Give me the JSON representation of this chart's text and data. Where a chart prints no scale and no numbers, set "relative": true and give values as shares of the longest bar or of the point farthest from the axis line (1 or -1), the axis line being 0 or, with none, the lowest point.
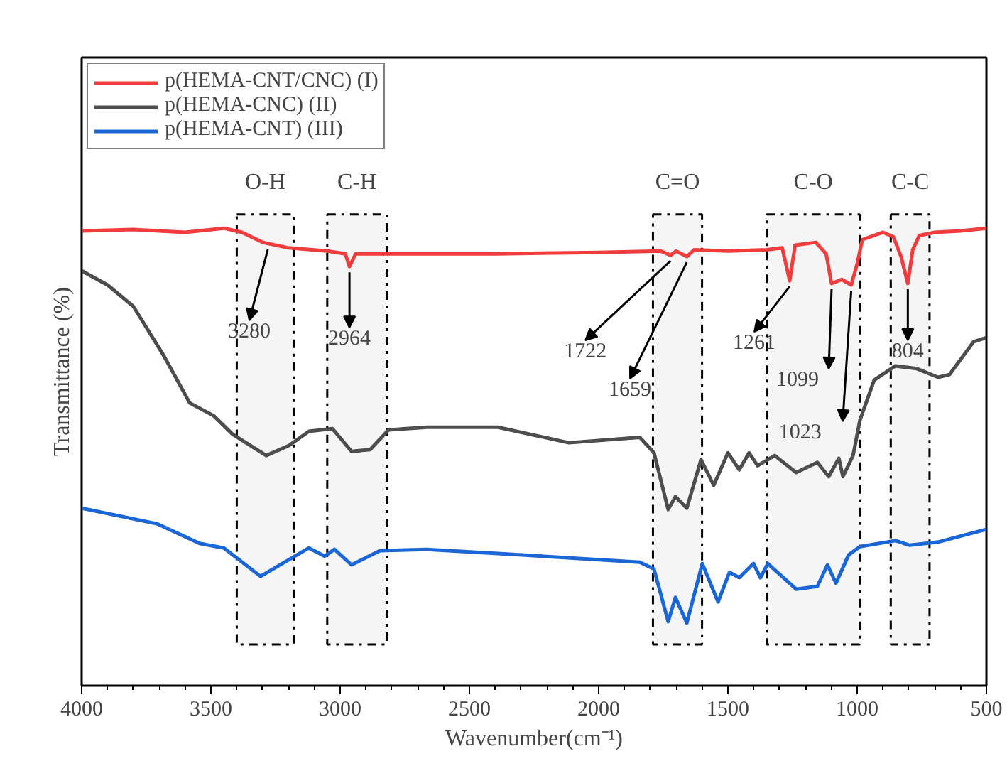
{
  "chart_data": {
    "type": "line",
    "relative": true,
    "xlabel": "Wavenumber(cm⁻¹)",
    "ylabel": "Transmittance (%)",
    "xlim": [
      4000,
      500
    ],
    "xticks": [
      4000,
      3500,
      3000,
      2500,
      2000,
      1500,
      1000,
      500
    ],
    "grid": false,
    "legend": "top left",
    "line_style": "solid",
    "marker": "none",
    "tick_labels": "x",
    "series": [
      {
        "name": "p(HEMA-CNT/CNC) (I)",
        "color": "#f03c3c",
        "x": [
          4000,
          3800,
          3600,
          3450,
          3380,
          3300,
          3200,
          3050,
          2980,
          2964,
          2940,
          2700,
          2400,
          2000,
          1760,
          1722,
          1700,
          1659,
          1630,
          1500,
          1350,
          1290,
          1261,
          1240,
          1160,
          1120,
          1099,
          1060,
          1023,
          1000,
          980,
          900,
          860,
          830,
          804,
          785,
          760,
          700,
          600,
          500
        ],
        "values": [
          0.994,
          0.997,
          0.991,
          1.0,
          0.991,
          0.969,
          0.957,
          0.95,
          0.944,
          0.916,
          0.944,
          0.944,
          0.944,
          0.947,
          0.95,
          0.941,
          0.95,
          0.938,
          0.953,
          0.95,
          0.953,
          0.957,
          0.885,
          0.963,
          0.969,
          0.944,
          0.879,
          0.888,
          0.876,
          0.922,
          0.975,
          0.991,
          0.981,
          0.938,
          0.879,
          0.953,
          0.984,
          0.991,
          0.994,
          1.0
        ]
      },
      {
        "name": "p(HEMA-CNC) (II)",
        "color": "#4d4d4d",
        "x": [
          4000,
          3900,
          3800,
          3681,
          3582,
          3489,
          3417,
          3286,
          3198,
          3121,
          3030,
          2956,
          2884,
          2813,
          2664,
          2390,
          2115,
          1841,
          1786,
          1731,
          1703,
          1659,
          1604,
          1555,
          1500,
          1456,
          1418,
          1385,
          1319,
          1236,
          1154,
          1110,
          1071,
          1055,
          1016,
          989,
          934,
          852,
          769,
          687,
          643,
          549,
          500
        ],
        "values": [
          0.907,
          0.876,
          0.829,
          0.72,
          0.618,
          0.59,
          0.55,
          0.503,
          0.525,
          0.556,
          0.562,
          0.512,
          0.516,
          0.559,
          0.565,
          0.565,
          0.531,
          0.543,
          0.509,
          0.385,
          0.413,
          0.388,
          0.494,
          0.438,
          0.509,
          0.472,
          0.509,
          0.481,
          0.503,
          0.466,
          0.488,
          0.457,
          0.497,
          0.457,
          0.503,
          0.581,
          0.668,
          0.699,
          0.693,
          0.674,
          0.68,
          0.752,
          0.761
        ]
      },
      {
        "name": "p(HEMA-CNT) (III)",
        "color": "#1a66d6",
        "x": [
          4000,
          3709,
          3544,
          3450,
          3308,
          3121,
          3060,
          3022,
          2956,
          2846,
          2665,
          2390,
          1841,
          1786,
          1731,
          1703,
          1659,
          1599,
          1538,
          1494,
          1456,
          1401,
          1374,
          1346,
          1236,
          1154,
          1115,
          1082,
          1033,
          989,
          852,
          797,
          687,
          500
        ],
        "values": [
          0.388,
          0.354,
          0.311,
          0.301,
          0.239,
          0.301,
          0.283,
          0.298,
          0.264,
          0.295,
          0.298,
          0.289,
          0.27,
          0.255,
          0.14,
          0.193,
          0.137,
          0.267,
          0.183,
          0.248,
          0.236,
          0.267,
          0.236,
          0.267,
          0.211,
          0.217,
          0.264,
          0.224,
          0.286,
          0.304,
          0.317,
          0.307,
          0.314,
          0.342
        ]
      }
    ],
    "bands": [
      {
        "axis": "x",
        "from": 3400,
        "to": 3180,
        "label": "O-H"
      },
      {
        "axis": "x",
        "from": 3050,
        "to": 2820,
        "label": "C-H"
      },
      {
        "axis": "x",
        "from": 1790,
        "to": 1600,
        "label": "C=O"
      },
      {
        "axis": "x",
        "from": 1350,
        "to": 990,
        "label": "C-O"
      },
      {
        "axis": "x",
        "from": 870,
        "to": 720,
        "label": "C-C"
      }
    ],
    "annotations": [
      {
        "text": "3280",
        "x": 3280,
        "y": 0.966
      },
      {
        "text": "2964",
        "x": 2964,
        "y": 0.916
      },
      {
        "text": "1722",
        "x": 1722,
        "y": 0.941
      },
      {
        "text": "1659",
        "x": 1659,
        "y": 0.938
      },
      {
        "text": "1261",
        "x": 1261,
        "y": 0.885
      },
      {
        "text": "1099",
        "x": 1099,
        "y": 0.879
      },
      {
        "text": "1023",
        "x": 1023,
        "y": 0.876
      },
      {
        "text": "804",
        "x": 804,
        "y": 0.879
      }
    ]
  }
}
